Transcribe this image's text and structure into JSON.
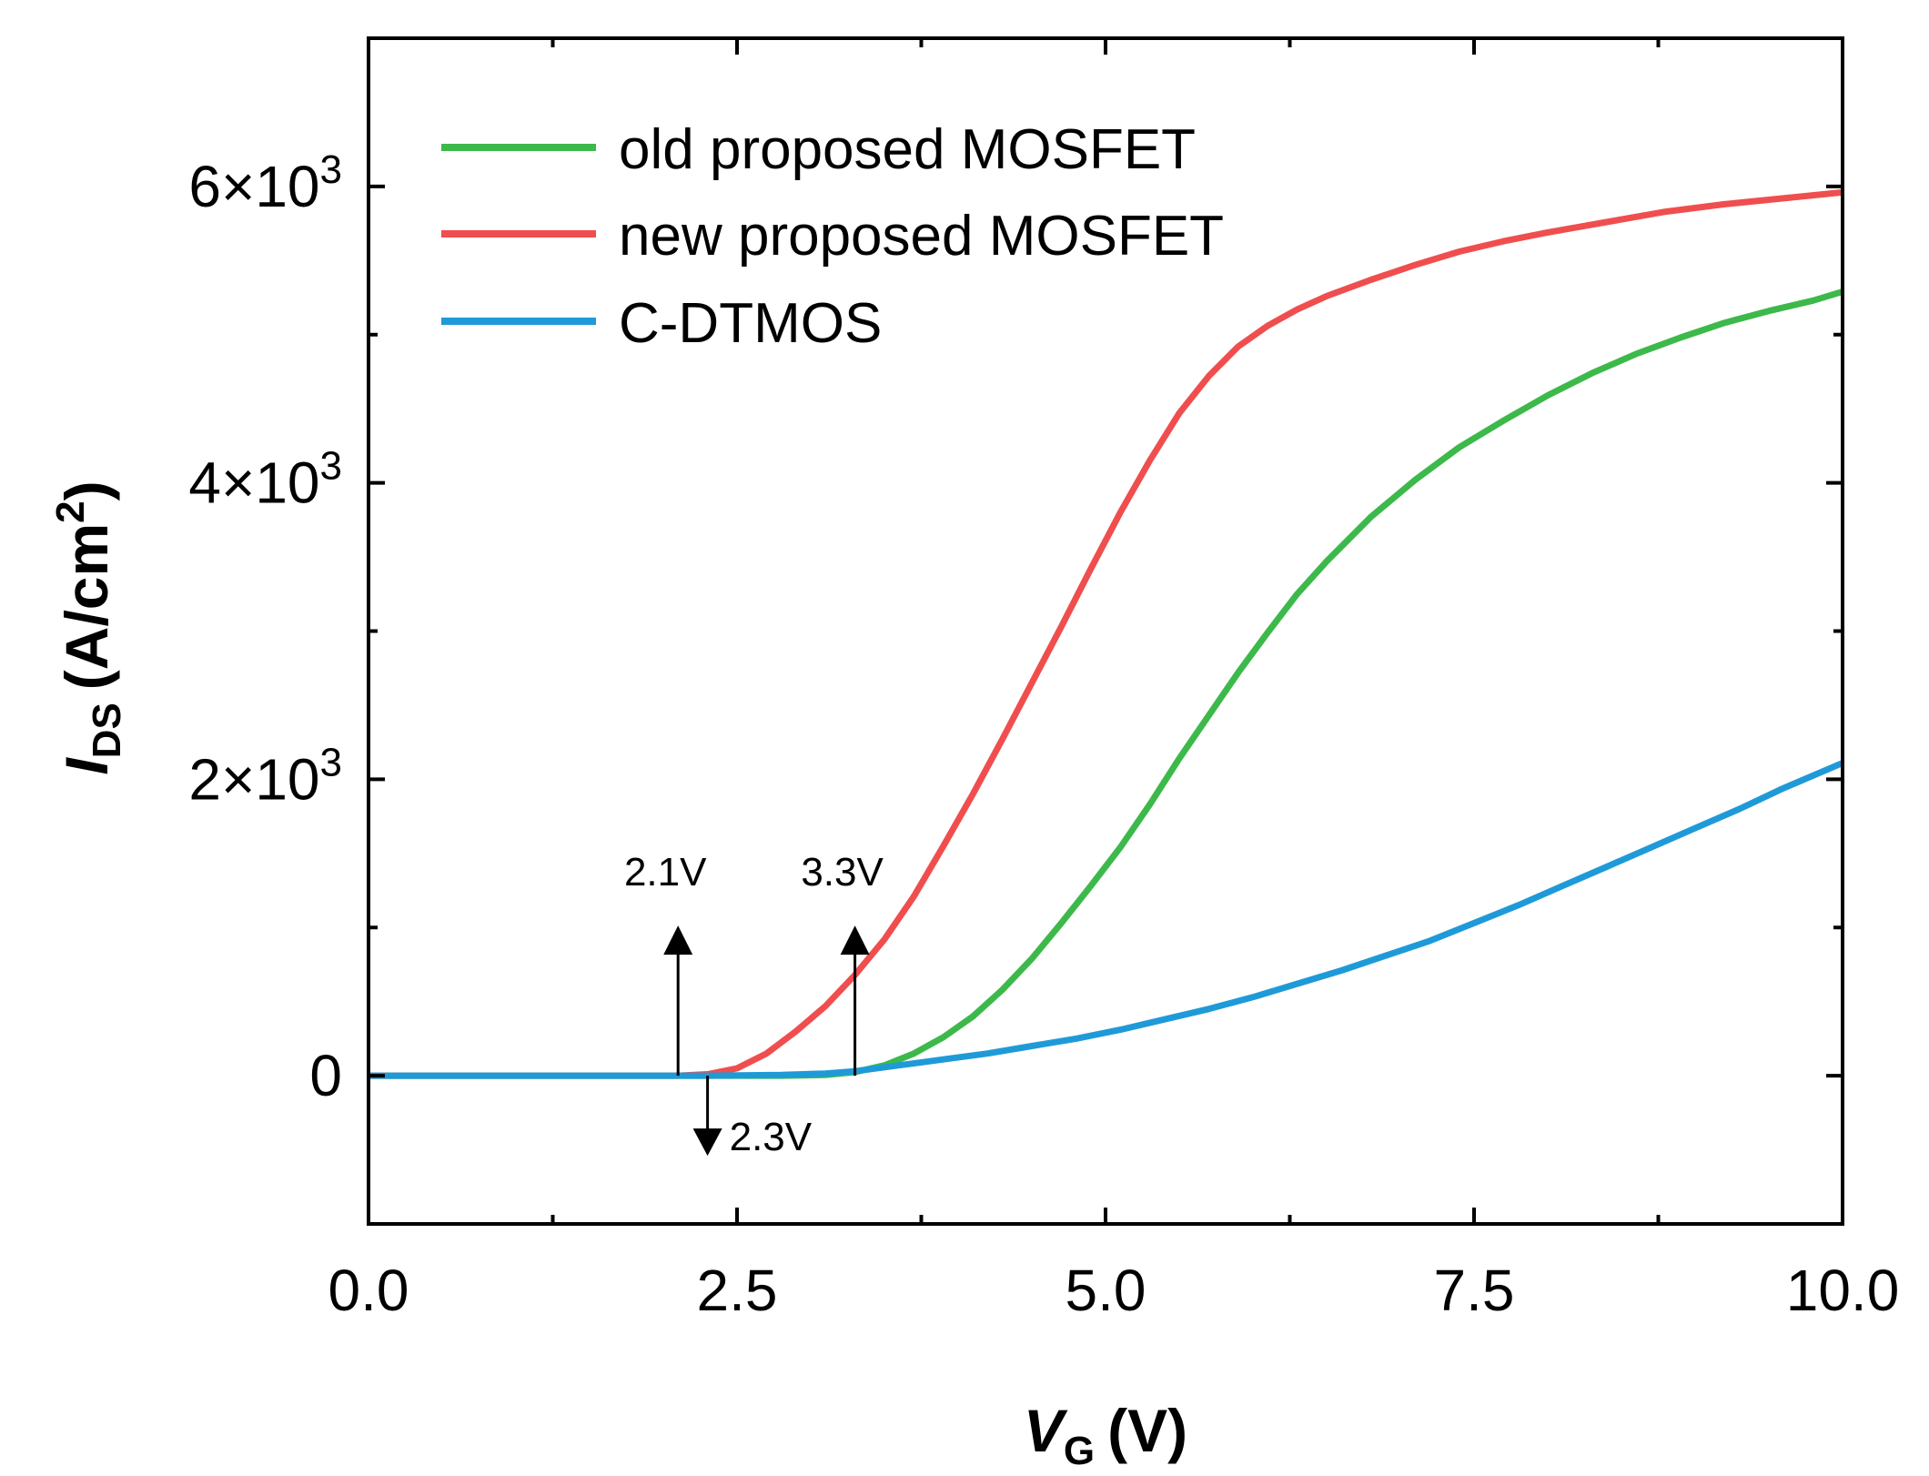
{
  "chart_data": {
    "type": "line",
    "title": "",
    "xlabel": {
      "main": "V",
      "sub": "G",
      "unit": "(V)"
    },
    "ylabel": {
      "main": "I",
      "sub": "DS",
      "unit_prefix": "(A/cm",
      "unit_sup": "2",
      "unit_suffix": ")"
    },
    "xlim": [
      0,
      10
    ],
    "ylim": [
      -1000,
      7000
    ],
    "xticks": [
      {
        "value": 0,
        "label": "0.0"
      },
      {
        "value": 2.5,
        "label": "2.5"
      },
      {
        "value": 5,
        "label": "5.0"
      },
      {
        "value": 7.5,
        "label": "7.5"
      },
      {
        "value": 10,
        "label": "10.0"
      }
    ],
    "xminor": [
      1.25,
      3.75,
      6.25,
      8.75
    ],
    "yticks": [
      {
        "value": 0,
        "label_main": "0",
        "label_sup": ""
      },
      {
        "value": 2000,
        "label_main": "2×10",
        "label_sup": "3"
      },
      {
        "value": 4000,
        "label_main": "4×10",
        "label_sup": "3"
      },
      {
        "value": 6000,
        "label_main": "6×10",
        "label_sup": "3"
      }
    ],
    "yminor": [
      1000,
      3000,
      5000
    ],
    "grid": false,
    "legend_position": "top-left",
    "series": [
      {
        "name": "old proposed MOSFET",
        "color": "#3cb94a",
        "x": [
          0,
          2.3,
          2.8,
          3.1,
          3.3,
          3.5,
          3.7,
          3.9,
          4.1,
          4.3,
          4.5,
          4.7,
          4.9,
          5.1,
          5.3,
          5.5,
          5.7,
          5.9,
          6.1,
          6.3,
          6.5,
          6.8,
          7.1,
          7.4,
          7.7,
          8.0,
          8.3,
          8.6,
          8.9,
          9.2,
          9.5,
          9.8,
          10.0
        ],
        "y": [
          0,
          0,
          0,
          5,
          25,
          70,
          150,
          260,
          400,
          580,
          790,
          1030,
          1280,
          1540,
          1830,
          2140,
          2430,
          2720,
          2990,
          3250,
          3470,
          3770,
          4020,
          4240,
          4420,
          4590,
          4740,
          4870,
          4980,
          5080,
          5160,
          5230,
          5290
        ]
      },
      {
        "name": "new proposed MOSFET",
        "color": "#f04e4e",
        "x": [
          0,
          2.1,
          2.3,
          2.5,
          2.7,
          2.9,
          3.1,
          3.3,
          3.5,
          3.7,
          3.9,
          4.1,
          4.3,
          4.5,
          4.7,
          4.9,
          5.1,
          5.3,
          5.5,
          5.7,
          5.9,
          6.1,
          6.3,
          6.5,
          6.8,
          7.1,
          7.4,
          7.7,
          8.0,
          8.4,
          8.8,
          9.2,
          9.6,
          10.0
        ],
        "y": [
          0,
          0,
          10,
          50,
          150,
          300,
          470,
          680,
          920,
          1210,
          1550,
          1900,
          2270,
          2650,
          3030,
          3420,
          3800,
          4150,
          4470,
          4720,
          4920,
          5060,
          5170,
          5260,
          5370,
          5470,
          5560,
          5630,
          5690,
          5760,
          5830,
          5880,
          5920,
          5960
        ]
      },
      {
        "name": "C-DTMOS",
        "color": "#1f9ad8",
        "x": [
          0,
          2.3,
          2.8,
          3.1,
          3.3,
          3.6,
          3.9,
          4.2,
          4.5,
          4.8,
          5.1,
          5.4,
          5.7,
          6.0,
          6.3,
          6.6,
          6.9,
          7.2,
          7.5,
          7.8,
          8.1,
          8.4,
          8.7,
          9.0,
          9.3,
          9.6,
          10.0
        ],
        "y": [
          0,
          0,
          5,
          15,
          30,
          70,
          110,
          150,
          200,
          250,
          310,
          380,
          450,
          530,
          620,
          710,
          810,
          910,
          1030,
          1150,
          1280,
          1410,
          1540,
          1670,
          1800,
          1940,
          2110
        ]
      }
    ],
    "annotations": [
      {
        "text": "2.1V",
        "x": 2.1,
        "direction": "up"
      },
      {
        "text": "2.3V",
        "x": 2.3,
        "direction": "down"
      },
      {
        "text": "3.3V",
        "x": 3.3,
        "direction": "up"
      }
    ]
  }
}
